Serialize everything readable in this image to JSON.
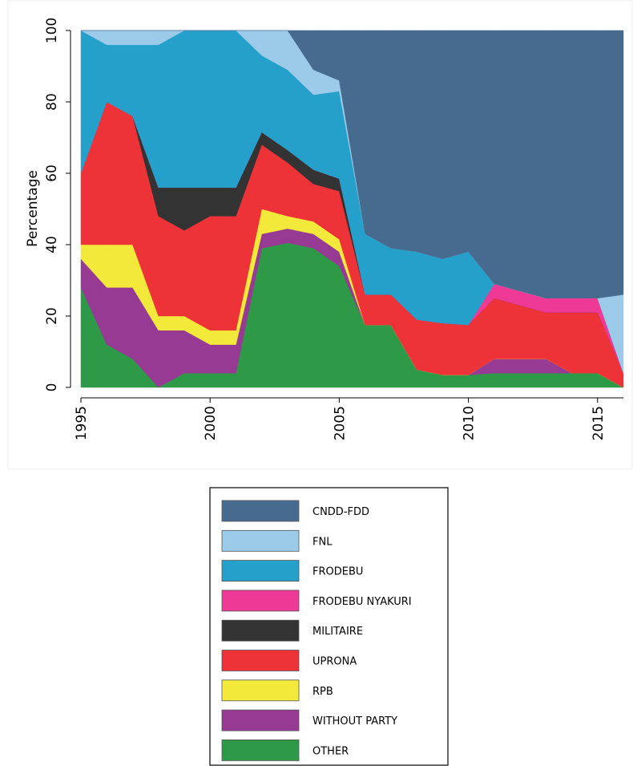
{
  "chart_data": {
    "type": "stacked-area",
    "y_label": "Percentage",
    "x": [
      1995,
      1996,
      1997,
      1998,
      1999,
      2000,
      2001,
      2002,
      2003,
      2004,
      2005,
      2006,
      2007,
      2008,
      2009,
      2010,
      2011,
      2012,
      2013,
      2014,
      2015,
      2016
    ],
    "xlim": [
      1995,
      2016
    ],
    "xticks": [
      1995,
      2000,
      2005,
      2010,
      2015
    ],
    "ylim": [
      0,
      100
    ],
    "yticks": [
      0,
      20,
      40,
      60,
      80,
      100
    ],
    "series": [
      {
        "name": "OTHER",
        "color": "#2e9a47",
        "values": [
          28,
          12,
          8,
          0,
          4,
          4,
          4,
          39,
          40.5,
          39,
          34,
          17.5,
          17.5,
          5,
          3.5,
          3.5,
          4,
          4,
          4,
          4,
          4,
          0
        ]
      },
      {
        "name": "WITHOUT PARTY",
        "color": "#973a93",
        "values": [
          8,
          16,
          20,
          16,
          12,
          8,
          8,
          4,
          4,
          4,
          4,
          0,
          0,
          0,
          0,
          0,
          4,
          4,
          4,
          0,
          0,
          0
        ]
      },
      {
        "name": "RPB",
        "color": "#f2e93a",
        "values": [
          4,
          12,
          12,
          4,
          4,
          4,
          4,
          7,
          3.5,
          3.5,
          3.5,
          0,
          0,
          0,
          0,
          0,
          0,
          0,
          0,
          0,
          0,
          0
        ]
      },
      {
        "name": "UPRONA",
        "color": "#ee3338",
        "values": [
          20,
          40,
          36,
          28,
          24,
          32,
          32,
          18,
          15,
          10.5,
          13.5,
          8.5,
          8.5,
          14,
          14.5,
          14,
          17,
          15,
          13,
          17,
          17,
          4
        ]
      },
      {
        "name": "MILITAIRE",
        "color": "#333333",
        "values": [
          0,
          0,
          0,
          8,
          12,
          8,
          8,
          3.5,
          3.5,
          4,
          3.5,
          0,
          0,
          0,
          0,
          0,
          0,
          0,
          0,
          0,
          0,
          0
        ]
      },
      {
        "name": "FRODEBU NYAKURI",
        "color": "#ee3a96",
        "values": [
          0,
          0,
          0,
          0,
          0,
          0,
          0,
          0,
          0,
          0,
          0,
          0,
          0,
          0,
          0,
          0,
          4,
          4,
          4,
          4,
          4,
          0
        ]
      },
      {
        "name": "FRODEBU",
        "color": "#24a0cb",
        "values": [
          40,
          16,
          20,
          40,
          44,
          44,
          44,
          21.5,
          22.5,
          21,
          24.5,
          17,
          13,
          19,
          18,
          20.5,
          0,
          0,
          0,
          0,
          0,
          0
        ]
      },
      {
        "name": "FNL",
        "color": "#9ccbe9",
        "values": [
          0,
          4,
          4,
          4,
          0,
          0,
          0,
          7,
          11,
          7,
          3,
          0,
          0,
          0,
          0,
          0,
          0,
          0,
          0,
          0,
          0,
          22
        ]
      },
      {
        "name": "CNDD-FDD",
        "color": "#476a8f",
        "values": [
          0,
          0,
          0,
          0,
          0,
          0,
          0,
          0,
          0,
          11,
          14,
          57,
          61,
          62,
          64,
          62,
          71,
          73,
          75,
          75,
          75,
          74
        ]
      }
    ]
  }
}
